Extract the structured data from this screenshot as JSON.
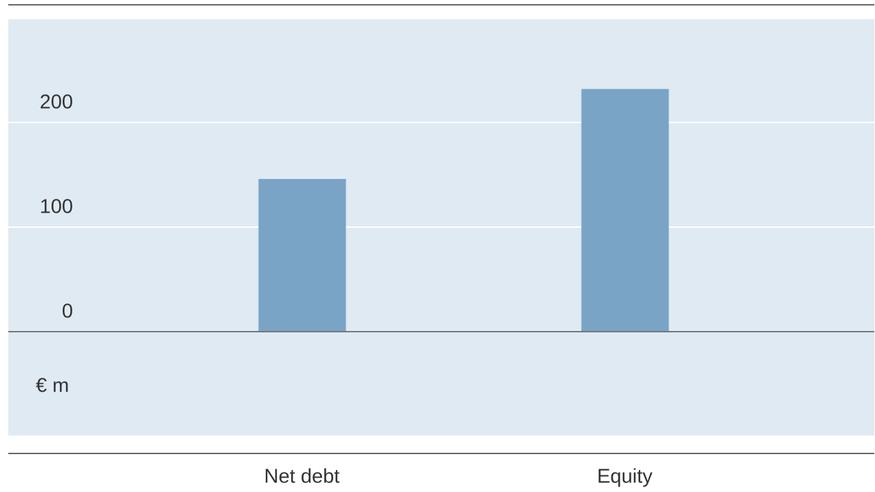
{
  "chart_data": {
    "type": "bar",
    "categories": [
      "Net debt",
      "Equity"
    ],
    "values": [
      146,
      232
    ],
    "color": "#79a4c6",
    "y_axis_label": "€ m",
    "ylim": [
      -100,
      300
    ],
    "yticks": [
      0,
      100,
      200
    ],
    "grid": true
  }
}
